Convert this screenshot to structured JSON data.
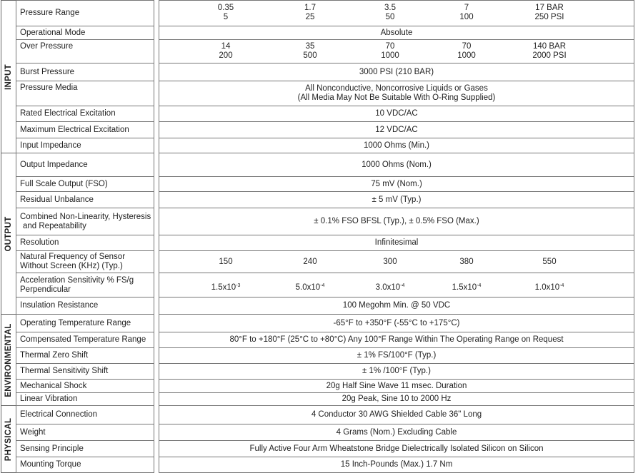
{
  "sections": [
    {
      "label": "INPUT",
      "rows": [
        {
          "label": "Pressure Range",
          "cols": [
            [
              "0.35",
              "5"
            ],
            [
              "1.7",
              "25"
            ],
            [
              "3.5",
              "50"
            ],
            [
              "7",
              "100"
            ],
            [
              "17 BAR",
              "250 PSI"
            ]
          ]
        },
        {
          "label": "Operational Mode",
          "value": "Absolute"
        },
        {
          "label": "Over Pressure",
          "cols": [
            [
              "14",
              "200"
            ],
            [
              "35",
              "500"
            ],
            [
              "70",
              "1000"
            ],
            [
              "70",
              "1000"
            ],
            [
              "140 BAR",
              "2000 PSI"
            ]
          ]
        },
        {
          "label": "Burst Pressure",
          "value": "3000 PSI (210 BAR)"
        },
        {
          "label": "Pressure Media",
          "value": "All Nonconductive, Noncorrosive Liquids or Gases",
          "value2": "(All Media May Not Be Suitable With O-Ring Supplied)"
        },
        {
          "label": "Rated Electrical Excitation",
          "value": "10 VDC/AC"
        },
        {
          "label": "Maximum Electrical Excitation",
          "value": "12 VDC/AC"
        },
        {
          "label": "Input Impedance",
          "value": "1000 Ohms (Min.)"
        }
      ]
    },
    {
      "label": "OUTPUT",
      "rows": [
        {
          "label": "Output Impedance",
          "value": "1000 Ohms (Nom.)"
        },
        {
          "label": "Full Scale Output (FSO)",
          "value": "75 mV (Nom.)"
        },
        {
          "label": "Residual Unbalance",
          "value": "± 5 mV (Typ.)"
        },
        {
          "label": "Combined Non-Linearity, Hysteresis",
          "label2": "and Repeatability",
          "value": "± 0.1% FSO BFSL (Typ.),  ± 0.5% FSO (Max.)"
        },
        {
          "label": "Resolution",
          "value": "Infinitesimal"
        },
        {
          "label": "Natural Frequency of Sensor",
          "label2": "Without Screen (KHz) (Typ.)",
          "cols": [
            [
              "150"
            ],
            [
              "240"
            ],
            [
              "300"
            ],
            [
              "380"
            ],
            [
              "550"
            ]
          ]
        },
        {
          "label": "Acceleration Sensitivity % FS/g",
          "label2": "Perpendicular",
          "sci": [
            [
              "1.5x10",
              "-3"
            ],
            [
              "5.0x10",
              "-4"
            ],
            [
              "3.0x10",
              "-4"
            ],
            [
              "1.5x10",
              "-4"
            ],
            [
              "1.0x10",
              "-4"
            ]
          ]
        },
        {
          "label": "Insulation Resistance",
          "value": "100 Megohm Min. @ 50 VDC"
        }
      ]
    },
    {
      "label": "ENVIRONMENTAL",
      "rows": [
        {
          "label": "Operating Temperature Range",
          "value": "-65°F to +350°F (-55°C to +175°C)"
        },
        {
          "label": "Compensated Temperature Range",
          "value": "80°F to +180°F (25°C to +80°C) Any 100°F Range Within The Operating Range on Request"
        },
        {
          "label": "Thermal Zero Shift",
          "value": "± 1% FS/100°F (Typ.)"
        },
        {
          "label": "Thermal Sensitivity Shift",
          "value": "± 1% /100°F (Typ.)"
        },
        {
          "label": "Mechanical Shock",
          "value": "20g Half Sine Wave 11 msec. Duration"
        },
        {
          "label": "Linear Vibration",
          "value": "20g Peak, Sine 10 to 2000 Hz"
        }
      ]
    },
    {
      "label": "PHYSICAL",
      "rows": [
        {
          "label": "Electrical Connection",
          "value": "4 Conductor 30 AWG Shielded Cable 36\" Long"
        },
        {
          "label": "Weight",
          "value": "4 Grams (Nom.) Excluding Cable"
        },
        {
          "label": "Sensing Principle",
          "value": "Fully Active Four Arm Wheatstone Bridge Dielectrically Isolated Silicon on Silicon"
        },
        {
          "label": "Mounting Torque",
          "value": "15 Inch-Pounds (Max.) 1.7 Nm"
        }
      ]
    }
  ]
}
